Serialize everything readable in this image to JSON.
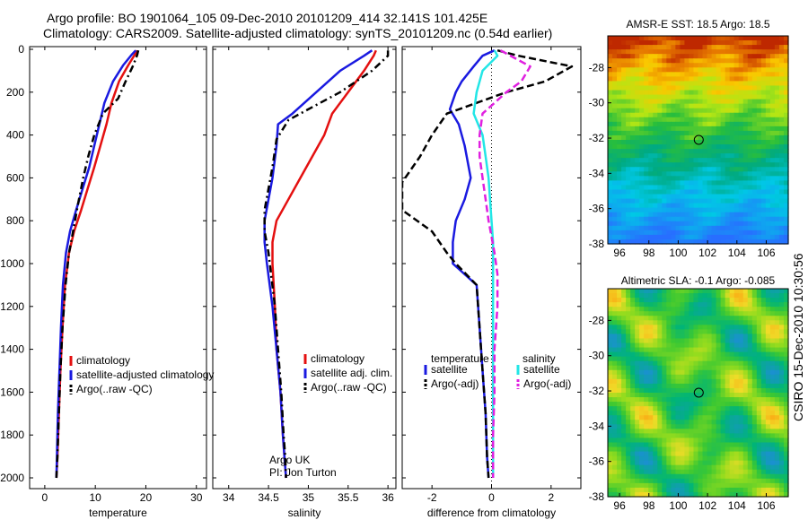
{
  "header": {
    "line1": "Argo profile: BO 1901064_105 09-Dec-2010 20101209_414 32.141S 101.425E",
    "line2": "Climatology: CARS2009. Satellite-adjusted climatology: synTS_20101209.nc (0.54d earlier)"
  },
  "side_label": "CSIRO 15-Dec-2010 10:30:56",
  "colors": {
    "red": "#e41010",
    "blue": "#1a1ae0",
    "black": "#000000",
    "cyan": "#22e6e6",
    "magenta": "#e020e0"
  },
  "chart_data": [
    {
      "id": "temperature",
      "type": "line",
      "xlabel": "temperature",
      "xlim": [
        -3,
        32
      ],
      "xticks": [
        "0",
        "10",
        "20",
        "30"
      ],
      "xtickvals": [
        0,
        10,
        20,
        30
      ],
      "ylim": [
        0,
        2050
      ],
      "yticks": [
        "0",
        "200",
        "400",
        "600",
        "800",
        "1000",
        "1200",
        "1400",
        "1600",
        "1800",
        "2000"
      ],
      "ytickvals": [
        0,
        200,
        400,
        600,
        800,
        1000,
        1200,
        1400,
        1600,
        1800,
        2000
      ],
      "series": [
        {
          "name": "climatology",
          "color": "red",
          "dash": "",
          "x": [
            18.3,
            17.8,
            16.5,
            14.7,
            13.2,
            12.2,
            11.0,
            9.8,
            8.5,
            7.2,
            5.8,
            4.8,
            4.0,
            3.5,
            3.1,
            2.8,
            2.5,
            2.3
          ],
          "y": [
            5,
            25,
            75,
            150,
            250,
            350,
            450,
            550,
            650,
            750,
            850,
            950,
            1100,
            1300,
            1500,
            1700,
            1900,
            2000
          ]
        },
        {
          "name": "satellite-adjusted climatology",
          "color": "blue",
          "dash": "",
          "x": [
            18.0,
            17.2,
            15.5,
            13.5,
            11.8,
            10.8,
            9.8,
            8.8,
            7.5,
            6.2,
            5.0,
            4.2,
            3.6,
            3.2,
            2.9,
            2.6,
            2.4,
            2.3
          ],
          "y": [
            5,
            25,
            75,
            150,
            250,
            350,
            450,
            550,
            650,
            750,
            850,
            950,
            1100,
            1300,
            1500,
            1700,
            1900,
            2000
          ]
        },
        {
          "name": "Argo(..raw -QC)",
          "color": "black",
          "dash": "8,4,2,4",
          "x": [
            18.5,
            18.3,
            17.5,
            16.0,
            14.5,
            11.5,
            9.8,
            8.6,
            7.6,
            6.6,
            5.6,
            4.8,
            4.1,
            3.5,
            3.1,
            2.8,
            2.5,
            2.3
          ],
          "y": [
            5,
            25,
            75,
            150,
            230,
            300,
            400,
            500,
            600,
            720,
            850,
            950,
            1100,
            1300,
            1500,
            1700,
            1900,
            2000
          ]
        }
      ],
      "legend": {
        "entries": [
          "climatology",
          "satellite-adjusted climatology",
          "Argo(..raw -QC)"
        ],
        "placement": "lower-right"
      }
    },
    {
      "id": "salinity",
      "type": "line",
      "xlabel": "salinity",
      "xlim": [
        33.8,
        36.1
      ],
      "xticks": [
        "34",
        "34.5",
        "35",
        "35.5",
        "36"
      ],
      "xtickvals": [
        34,
        34.5,
        35,
        35.5,
        36
      ],
      "ylim": [
        0,
        2050
      ],
      "series": [
        {
          "name": "climatology",
          "color": "red",
          "dash": "",
          "x": [
            35.85,
            35.82,
            35.7,
            35.5,
            35.3,
            35.2,
            35.05,
            34.9,
            34.75,
            34.6,
            34.55,
            34.55,
            34.58,
            34.6,
            34.65,
            34.68,
            34.7,
            34.72
          ],
          "y": [
            5,
            30,
            100,
            200,
            300,
            400,
            500,
            600,
            700,
            800,
            900,
            1000,
            1200,
            1400,
            1600,
            1800,
            1900,
            2000
          ]
        },
        {
          "name": "satellite adj. clim.",
          "color": "blue",
          "dash": "",
          "x": [
            35.8,
            35.7,
            35.4,
            35.1,
            34.8,
            34.62,
            34.6,
            34.55,
            34.5,
            34.45,
            34.45,
            34.48,
            34.55,
            34.6,
            34.65,
            34.68,
            34.7,
            34.72
          ],
          "y": [
            5,
            30,
            100,
            200,
            300,
            350,
            450,
            600,
            700,
            800,
            900,
            1000,
            1200,
            1400,
            1600,
            1800,
            1900,
            2000
          ]
        },
        {
          "name": "Argo(..raw -QC)",
          "color": "black",
          "dash": "8,4,2,4",
          "x": [
            36.0,
            36.0,
            35.8,
            35.4,
            35.0,
            34.75,
            34.6,
            34.55,
            34.5,
            34.45,
            34.45,
            34.5,
            34.58,
            34.62,
            34.66,
            34.69,
            34.71,
            34.72
          ],
          "y": [
            5,
            30,
            100,
            200,
            280,
            330,
            420,
            550,
            650,
            750,
            850,
            950,
            1200,
            1400,
            1600,
            1800,
            1900,
            2000
          ]
        }
      ],
      "legend": {
        "entries": [
          "climatology",
          "satellite adj. clim.",
          "Argo(..raw -QC)"
        ],
        "placement": "lower-right"
      },
      "annotation": {
        "line1": "Argo UK",
        "line2": "PI: Jon Turton"
      }
    },
    {
      "id": "difference",
      "type": "line",
      "xlabel": "difference from climatology",
      "xlim": [
        -3,
        3
      ],
      "xticks": [
        "-2",
        "0",
        "2"
      ],
      "xtickvals": [
        -2,
        0,
        2
      ],
      "ylim": [
        0,
        2050
      ],
      "series": [
        {
          "name": "temperature satellite",
          "color": "blue",
          "dash": "",
          "x": [
            0.1,
            -0.3,
            -0.6,
            -1.0,
            -1.2,
            -1.4,
            -1.1,
            -0.9,
            -0.7,
            -0.9,
            -1.2,
            -1.3,
            -1.3,
            -0.5,
            -0.4,
            -0.3,
            -0.2,
            -0.15,
            -0.1
          ],
          "y": [
            5,
            30,
            80,
            150,
            200,
            280,
            350,
            450,
            600,
            700,
            800,
            900,
            1000,
            1100,
            1300,
            1500,
            1700,
            1900,
            2000
          ]
        },
        {
          "name": "temperature Argo(-adj)",
          "color": "black",
          "dash": "8,4",
          "x": [
            0.2,
            0.9,
            2.7,
            1.8,
            0.5,
            -1.5,
            -2.0,
            -2.4,
            -3.0,
            -3.0,
            -2.0,
            -1.5,
            -1.2,
            -0.5,
            -0.4,
            -0.3,
            -0.2,
            -0.15,
            -0.1
          ],
          "y": [
            5,
            30,
            80,
            150,
            200,
            300,
            400,
            500,
            620,
            750,
            850,
            950,
            1000,
            1100,
            1300,
            1500,
            1700,
            1900,
            2000
          ]
        },
        {
          "name": "salinity satellite",
          "color": "cyan",
          "dash": "",
          "x": [
            0.1,
            0.2,
            -0.3,
            -0.5,
            -0.6,
            -0.3,
            -0.2,
            -0.1,
            -0.05,
            0,
            0.05,
            0.05,
            0.05,
            0.05,
            0.05,
            0.05,
            0.05
          ],
          "y": [
            5,
            30,
            100,
            200,
            300,
            400,
            500,
            600,
            700,
            800,
            900,
            1000,
            1200,
            1400,
            1600,
            1800,
            2000
          ]
        },
        {
          "name": "salinity Argo(-adj)",
          "color": "magenta",
          "dash": "8,4",
          "x": [
            0.3,
            1.3,
            1.0,
            0.5,
            -0.3,
            -0.4,
            -0.4,
            -0.3,
            -0.2,
            -0.1,
            0.1,
            0.2,
            0.2,
            0.1,
            0.1,
            0.05,
            0.05
          ],
          "y": [
            5,
            80,
            150,
            200,
            300,
            400,
            500,
            600,
            700,
            800,
            950,
            1050,
            1200,
            1400,
            1600,
            1800,
            2000
          ]
        }
      ],
      "legend": {
        "temperature_title": "temperature",
        "salinity_title": "salinity",
        "entries_left": [
          "satellite",
          "Argo(-adj)"
        ],
        "entries_right": [
          "satellite",
          "Argo(-adj)"
        ],
        "placement": "lower"
      },
      "zero_line": "dotted"
    },
    {
      "id": "sst_map",
      "type": "heatmap",
      "title": "AMSR-E SST: 18.5 Argo: 18.5",
      "xticks": [
        "96",
        "98",
        "100",
        "102",
        "104",
        "106"
      ],
      "xtickvals": [
        96,
        98,
        100,
        102,
        104,
        106
      ],
      "yticks": [
        "-28",
        "-30",
        "-32",
        "-34",
        "-36",
        "-38"
      ],
      "ytickvals": [
        -28,
        -30,
        -32,
        -34,
        -36,
        -38
      ],
      "xlim": [
        95.2,
        107.5
      ],
      "ylim": [
        -38,
        -26.2
      ],
      "marker": {
        "lon": 101.4,
        "lat": -32.1
      }
    },
    {
      "id": "sla_map",
      "type": "heatmap",
      "title": "Altimetric SLA: -0.1 Argo: -0.085",
      "xticks": [
        "96",
        "98",
        "100",
        "102",
        "104",
        "106"
      ],
      "xtickvals": [
        96,
        98,
        100,
        102,
        104,
        106
      ],
      "yticks": [
        "-28",
        "-30",
        "-32",
        "-34",
        "-36",
        "-38"
      ],
      "ytickvals": [
        -28,
        -30,
        -32,
        -34,
        -36,
        -38
      ],
      "xlim": [
        95.2,
        107.5
      ],
      "ylim": [
        -38,
        -26.2
      ],
      "marker": {
        "lon": 101.4,
        "lat": -32.1
      }
    }
  ]
}
